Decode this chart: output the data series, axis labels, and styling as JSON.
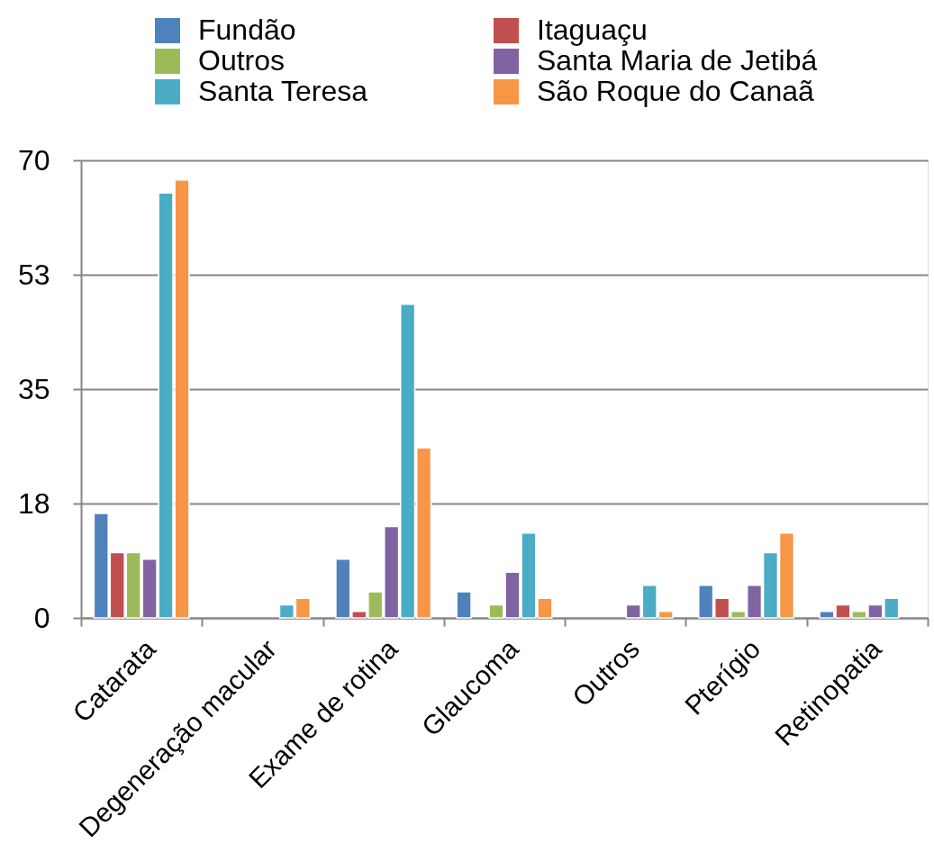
{
  "chart_data": {
    "type": "bar",
    "categories": [
      "Catarata",
      "Degeneração macular",
      "Exame de rotina",
      "Glaucoma",
      "Outros",
      "Pterígio",
      "Retinopatia"
    ],
    "series": [
      {
        "name": "Fundão",
        "color": "#4f81bd",
        "values": [
          16,
          null,
          9,
          4,
          null,
          5,
          1
        ]
      },
      {
        "name": "Itaguaçu",
        "color": "#c0504d",
        "values": [
          10,
          null,
          1,
          null,
          null,
          3,
          2
        ]
      },
      {
        "name": "Outros",
        "color": "#9bbb59",
        "values": [
          10,
          null,
          4,
          2,
          null,
          1,
          1
        ]
      },
      {
        "name": "Santa Maria de Jetibá",
        "color": "#8064a2",
        "values": [
          9,
          null,
          14,
          7,
          2,
          5,
          2
        ]
      },
      {
        "name": "Santa Teresa",
        "color": "#4bacc6",
        "values": [
          65,
          2,
          48,
          13,
          5,
          10,
          3
        ]
      },
      {
        "name": "São Roque do Canaã",
        "color": "#f79646",
        "values": [
          67,
          3,
          26,
          3,
          1,
          13,
          null
        ]
      }
    ],
    "ylim": [
      0,
      70
    ],
    "yticks": [
      0,
      {
        "value": 17.5,
        "label": "18"
      },
      35,
      {
        "value": 52.5,
        "label": "53"
      },
      70
    ],
    "grid": "y",
    "legend": "top"
  }
}
